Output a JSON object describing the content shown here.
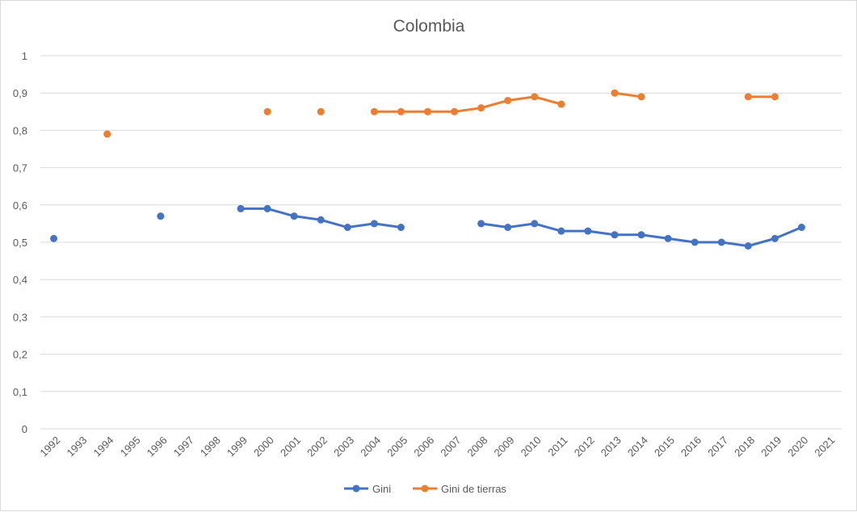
{
  "chart_data": {
    "type": "line",
    "title": "Colombia",
    "xlabel": "",
    "ylabel": "",
    "ylim": [
      0,
      1
    ],
    "yticks": [
      "0",
      "0,1",
      "0,2",
      "0,3",
      "0,4",
      "0,5",
      "0,6",
      "0,7",
      "0,8",
      "0,9",
      "1"
    ],
    "grid": true,
    "legend_position": "bottom",
    "categories": [
      "1992",
      "1993",
      "1994",
      "1995",
      "1996",
      "1997",
      "1998",
      "1999",
      "2000",
      "2001",
      "2002",
      "2003",
      "2004",
      "2005",
      "2006",
      "2007",
      "2008",
      "2009",
      "2010",
      "2011",
      "2012",
      "2013",
      "2014",
      "2015",
      "2016",
      "2017",
      "2018",
      "2019",
      "2020",
      "2021"
    ],
    "series": [
      {
        "name": "Gini",
        "color": "#4472c4",
        "values": [
          0.51,
          null,
          null,
          null,
          0.57,
          null,
          null,
          0.59,
          0.59,
          0.57,
          0.56,
          0.54,
          0.55,
          0.54,
          null,
          null,
          0.55,
          0.54,
          0.55,
          0.53,
          0.53,
          0.52,
          0.52,
          0.51,
          0.5,
          0.5,
          0.49,
          0.51,
          0.54,
          null
        ]
      },
      {
        "name": "Gini de tierras",
        "color": "#ed7d31",
        "values": [
          null,
          null,
          0.79,
          null,
          null,
          null,
          null,
          null,
          0.85,
          null,
          0.85,
          null,
          0.85,
          0.85,
          0.85,
          0.85,
          0.86,
          0.88,
          0.89,
          0.87,
          null,
          0.9,
          0.89,
          null,
          null,
          null,
          0.89,
          0.89,
          null,
          null
        ]
      }
    ]
  }
}
